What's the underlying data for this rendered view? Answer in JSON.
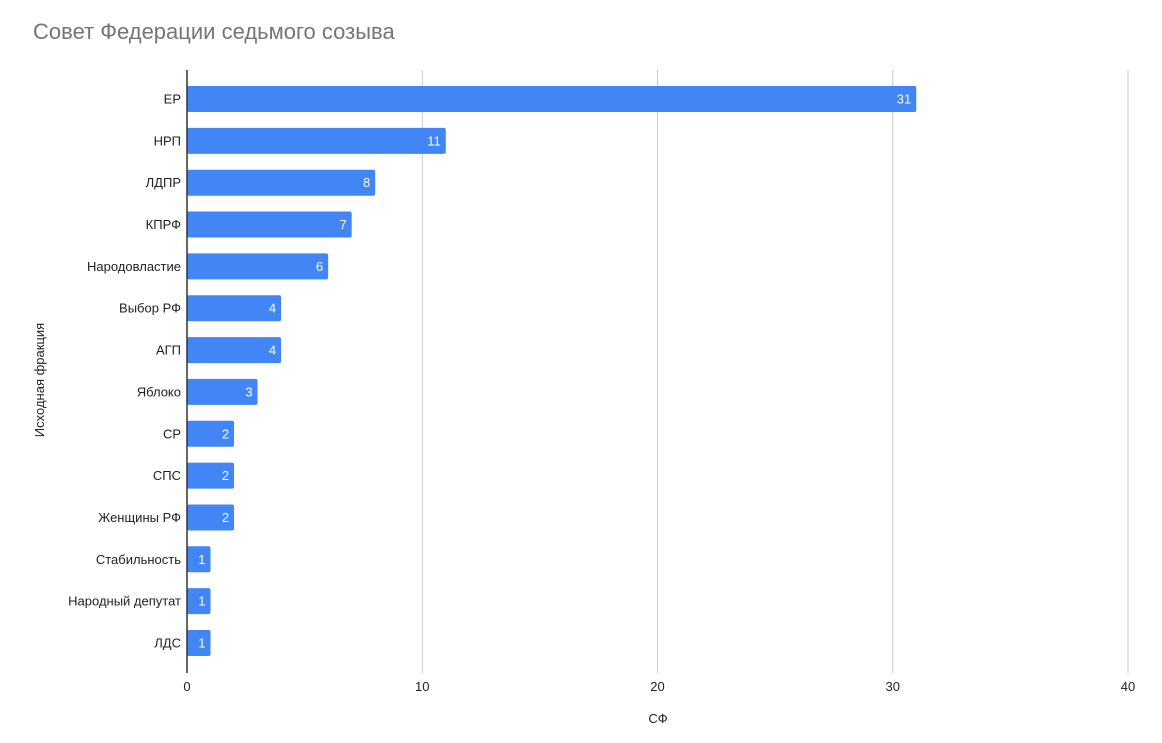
{
  "chart_data": {
    "type": "bar",
    "orientation": "horizontal",
    "title": "Совет Федерации седьмого созыва",
    "xlabel": "СФ",
    "ylabel": "Исходная фракция",
    "categories": [
      "ЕР",
      "НРП",
      "ЛДПР",
      "КПРФ",
      "Народовластие",
      "Выбор РФ",
      "АГП",
      "Яблоко",
      "СР",
      "СПС",
      "Женщины РФ",
      "Стабильность",
      "Народный депутат",
      "ЛДС"
    ],
    "values": [
      31,
      11,
      8,
      7,
      6,
      4,
      4,
      3,
      2,
      2,
      2,
      1,
      1,
      1
    ],
    "xlim": [
      0,
      40
    ],
    "xticks": [
      0,
      10,
      20,
      30,
      40
    ],
    "grid": true,
    "data_labels": true,
    "legend": "none",
    "bar_color": "#4285f4"
  }
}
